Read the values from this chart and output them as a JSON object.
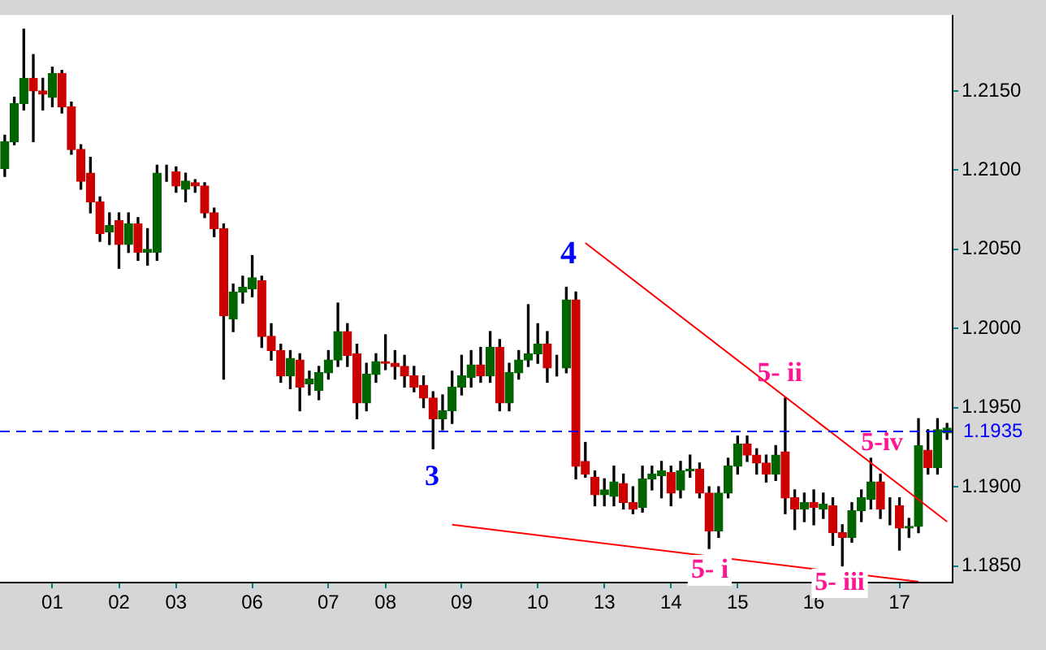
{
  "chart_data": {
    "type": "candlestick",
    "categories": [
      null,
      null,
      null,
      null,
      null,
      "01",
      null,
      null,
      null,
      null,
      null,
      null,
      "02",
      null,
      null,
      null,
      null,
      null,
      "03",
      null,
      null,
      null,
      null,
      null,
      null,
      null,
      "06",
      null,
      null,
      null,
      null,
      null,
      null,
      null,
      "07",
      null,
      null,
      null,
      null,
      null,
      "08",
      null,
      null,
      null,
      null,
      null,
      null,
      null,
      "09",
      null,
      null,
      null,
      null,
      null,
      null,
      null,
      "10",
      null,
      null,
      null,
      null,
      null,
      null,
      "13",
      null,
      null,
      null,
      null,
      null,
      null,
      "14",
      null,
      null,
      null,
      null,
      null,
      null,
      "15",
      null,
      null,
      null,
      null,
      null,
      null,
      null,
      "16",
      null,
      null,
      null,
      null,
      null,
      null,
      null,
      null,
      "17",
      null,
      null,
      null,
      null,
      null
    ],
    "series": [
      {
        "ohlc": [
          [
            1.2101,
            1.2122,
            1.2096,
            1.2118
          ],
          [
            1.2118,
            1.2146,
            1.2116,
            1.2142
          ],
          [
            1.2142,
            1.2189,
            1.2138,
            1.2158
          ],
          [
            1.2158,
            1.2173,
            1.2118,
            1.215
          ],
          [
            1.215,
            1.2158,
            1.2138,
            1.2148
          ],
          [
            1.2146,
            1.2165,
            1.214,
            1.2161
          ],
          [
            1.2161,
            1.2163,
            1.2136,
            1.214
          ],
          [
            1.214,
            1.2143,
            1.211,
            1.2113
          ],
          [
            1.2113,
            1.2116,
            1.2088,
            1.2093
          ],
          [
            1.2098,
            1.2108,
            1.2073,
            1.208
          ],
          [
            1.208,
            1.2083,
            1.2055,
            1.206
          ],
          [
            1.2061,
            1.2073,
            1.2053,
            1.2065
          ],
          [
            1.2068,
            1.2073,
            1.2038,
            1.2053
          ],
          [
            1.2053,
            1.2073,
            1.2048,
            1.2066
          ],
          [
            1.2066,
            1.207,
            1.2043,
            1.2048
          ],
          [
            1.2048,
            1.2063,
            1.204,
            1.205
          ],
          [
            1.2048,
            1.2103,
            1.2043,
            1.2098
          ],
          [
            1.2099,
            1.2103,
            1.2093,
            1.2099
          ],
          [
            1.2099,
            1.2102,
            1.2086,
            1.209
          ],
          [
            1.2088,
            1.2098,
            1.208,
            1.2093
          ],
          [
            1.2092,
            1.2094,
            1.2086,
            1.209
          ],
          [
            1.209,
            1.2092,
            1.207,
            1.2073
          ],
          [
            1.2073,
            1.2076,
            1.2058,
            1.2063
          ],
          [
            1.2063,
            1.2066,
            1.1968,
            1.2008
          ],
          [
            1.2006,
            1.2028,
            1.1998,
            1.2023
          ],
          [
            1.2023,
            1.2033,
            1.2016,
            1.2026
          ],
          [
            1.2025,
            1.2046,
            1.202,
            1.2032
          ],
          [
            1.203,
            1.2033,
            1.1988,
            1.1995
          ],
          [
            1.1995,
            1.2003,
            1.198,
            1.1986
          ],
          [
            1.1986,
            1.199,
            1.1966,
            1.197
          ],
          [
            1.197,
            1.1986,
            1.1962,
            1.1981
          ],
          [
            1.198,
            1.1984,
            1.1948,
            1.1963
          ],
          [
            1.1965,
            1.1973,
            1.1958,
            1.1968
          ],
          [
            1.1961,
            1.1976,
            1.1955,
            1.1972
          ],
          [
            1.1972,
            1.1986,
            1.1968,
            1.198
          ],
          [
            1.198,
            1.2016,
            1.1976,
            1.1998
          ],
          [
            1.1998,
            1.2003,
            1.1976,
            1.1983
          ],
          [
            1.1984,
            1.199,
            1.1943,
            1.1953
          ],
          [
            1.1953,
            1.1978,
            1.1948,
            1.1971
          ],
          [
            1.1971,
            1.1984,
            1.1966,
            1.1979
          ],
          [
            1.1979,
            1.1996,
            1.1974,
            1.1978
          ],
          [
            1.1978,
            1.1986,
            1.1968,
            1.1976
          ],
          [
            1.1976,
            1.1983,
            1.1963,
            1.197
          ],
          [
            1.197,
            1.1976,
            1.196,
            1.1963
          ],
          [
            1.1964,
            1.197,
            1.195,
            1.1956
          ],
          [
            1.1956,
            1.196,
            1.1924,
            1.1943
          ],
          [
            1.1943,
            1.1958,
            1.1936,
            1.1948
          ],
          [
            1.1948,
            1.1973,
            1.194,
            1.1963
          ],
          [
            1.1963,
            1.1983,
            1.1958,
            1.197
          ],
          [
            1.1969,
            1.1986,
            1.1963,
            1.1977
          ],
          [
            1.1977,
            1.1988,
            1.1966,
            1.197
          ],
          [
            1.197,
            1.1998,
            1.1966,
            1.1988
          ],
          [
            1.1988,
            1.1993,
            1.1948,
            1.1953
          ],
          [
            1.1953,
            1.1978,
            1.1948,
            1.1972
          ],
          [
            1.1972,
            1.1986,
            1.1968,
            1.198
          ],
          [
            1.198,
            1.2015,
            1.1976,
            1.1984
          ],
          [
            1.1984,
            1.2003,
            1.1978,
            1.199
          ],
          [
            1.199,
            1.1998,
            1.1966,
            1.1975
          ],
          [
            1.1976,
            1.1983,
            1.197,
            1.1976
          ],
          [
            1.1975,
            1.2026,
            1.1972,
            1.2018
          ],
          [
            1.2018,
            1.2023,
            1.1905,
            1.1913
          ],
          [
            1.1916,
            1.1928,
            1.1906,
            1.1908
          ],
          [
            1.1906,
            1.191,
            1.1888,
            1.1895
          ],
          [
            1.1895,
            1.1905,
            1.1888,
            1.1898
          ],
          [
            1.1894,
            1.1913,
            1.1888,
            1.1903
          ],
          [
            1.1902,
            1.1908,
            1.1886,
            1.189
          ],
          [
            1.189,
            1.19,
            1.1883,
            1.1886
          ],
          [
            1.1887,
            1.1913,
            1.1884,
            1.1905
          ],
          [
            1.1905,
            1.1913,
            1.1898,
            1.1908
          ],
          [
            1.1907,
            1.1916,
            1.1893,
            1.191
          ],
          [
            1.1909,
            1.1913,
            1.1888,
            1.1896
          ],
          [
            1.1898,
            1.1916,
            1.1893,
            1.191
          ],
          [
            1.191,
            1.192,
            1.1906,
            1.1911
          ],
          [
            1.1911,
            1.1915,
            1.1893,
            1.1896
          ],
          [
            1.1896,
            1.19,
            1.1861,
            1.1872
          ],
          [
            1.1872,
            1.19,
            1.1868,
            1.1896
          ],
          [
            1.1896,
            1.1918,
            1.1893,
            1.1913
          ],
          [
            1.1913,
            1.1932,
            1.1908,
            1.1927
          ],
          [
            1.1927,
            1.1932,
            1.1916,
            1.192
          ],
          [
            1.192,
            1.1924,
            1.1908,
            1.1915
          ],
          [
            1.1915,
            1.192,
            1.1903,
            1.1908
          ],
          [
            1.1908,
            1.1926,
            1.1904,
            1.192
          ],
          [
            1.1922,
            1.1956,
            1.1883,
            1.1893
          ],
          [
            1.1893,
            1.1898,
            1.1873,
            1.1886
          ],
          [
            1.1886,
            1.1896,
            1.1878,
            1.189
          ],
          [
            1.189,
            1.1898,
            1.1876,
            1.1887
          ],
          [
            1.1886,
            1.1896,
            1.188,
            1.1889
          ],
          [
            1.1888,
            1.1893,
            1.1863,
            1.1871
          ],
          [
            1.1871,
            1.1876,
            1.185,
            1.1868
          ],
          [
            1.1868,
            1.189,
            1.1865,
            1.1885
          ],
          [
            1.1885,
            1.1898,
            1.1878,
            1.1893
          ],
          [
            1.1892,
            1.1918,
            1.1886,
            1.1903
          ],
          [
            1.1903,
            1.1908,
            1.188,
            1.1886
          ],
          [
            1.1886,
            1.1893,
            1.1876,
            1.1886
          ],
          [
            1.1888,
            1.1893,
            1.186,
            1.1874
          ],
          [
            1.1874,
            1.188,
            1.1868,
            1.1875
          ],
          [
            1.1875,
            1.1943,
            1.1871,
            1.1926
          ],
          [
            1.1923,
            1.1936,
            1.1908,
            1.1912
          ],
          [
            1.1912,
            1.1943,
            1.1908,
            1.1936
          ],
          [
            1.1934,
            1.194,
            1.193,
            1.1937
          ]
        ],
        "colors": [
          "#006400",
          "#006400",
          "#006400",
          "#cc0000",
          "#cc0000",
          "#006400",
          "#cc0000",
          "#cc0000",
          "#cc0000",
          "#cc0000",
          "#cc0000",
          "#006400",
          "#cc0000",
          "#006400",
          "#cc0000",
          "#006400",
          "#006400",
          "#006400",
          "#cc0000",
          "#006400",
          "#cc0000",
          "#cc0000",
          "#cc0000",
          "#cc0000",
          "#006400",
          "#006400",
          "#006400",
          "#cc0000",
          "#cc0000",
          "#cc0000",
          "#006400",
          "#cc0000",
          "#006400",
          "#006400",
          "#006400",
          "#006400",
          "#cc0000",
          "#cc0000",
          "#006400",
          "#006400",
          "#cc0000",
          "#cc0000",
          "#cc0000",
          "#cc0000",
          "#cc0000",
          "#cc0000",
          "#006400",
          "#006400",
          "#006400",
          "#006400",
          "#cc0000",
          "#006400",
          "#cc0000",
          "#006400",
          "#006400",
          "#006400",
          "#006400",
          "#cc0000",
          "#006400",
          "#006400",
          "#cc0000",
          "#cc0000",
          "#cc0000",
          "#006400",
          "#006400",
          "#cc0000",
          "#cc0000",
          "#006400",
          "#006400",
          "#006400",
          "#cc0000",
          "#006400",
          "#006400",
          "#cc0000",
          "#cc0000",
          "#006400",
          "#006400",
          "#006400",
          "#cc0000",
          "#cc0000",
          "#cc0000",
          "#006400",
          "#cc0000",
          "#cc0000",
          "#006400",
          "#cc0000",
          "#006400",
          "#cc0000",
          "#cc0000",
          "#006400",
          "#006400",
          "#006400",
          "#cc0000",
          "#006400",
          "#cc0000",
          "#006400",
          "#006400",
          "#cc0000",
          "#006400",
          "#006400"
        ]
      },
      {
        "type": "line",
        "color": "#ff0000",
        "values": [
          null,
          null,
          null,
          null,
          null,
          null,
          null,
          null,
          null,
          null,
          null,
          null,
          null,
          null,
          null,
          null,
          null,
          null,
          null,
          null,
          null,
          null,
          null,
          null,
          null,
          null,
          null,
          null,
          null,
          null,
          null,
          null,
          null,
          null,
          null,
          null,
          null,
          null,
          null,
          null,
          null,
          null,
          null,
          null,
          null,
          null,
          null,
          null,
          null,
          null,
          null,
          null,
          null,
          null,
          null,
          null,
          null,
          null,
          null,
          null,
          null,
          1.2054,
          null,
          null,
          null,
          null,
          null,
          null,
          null,
          null,
          null,
          null,
          null,
          null,
          null,
          null,
          null,
          null,
          null,
          null,
          null,
          null,
          null,
          null,
          null,
          null,
          null,
          null,
          null,
          null,
          null,
          null,
          null,
          null,
          null,
          null,
          null,
          null,
          null,
          1.1878
        ]
      },
      {
        "type": "line",
        "color": "#ff0000",
        "values": [
          null,
          null,
          null,
          null,
          null,
          null,
          null,
          null,
          null,
          null,
          null,
          null,
          null,
          null,
          null,
          null,
          null,
          null,
          null,
          null,
          null,
          null,
          null,
          null,
          null,
          null,
          null,
          null,
          null,
          null,
          null,
          null,
          null,
          null,
          null,
          null,
          null,
          null,
          null,
          null,
          null,
          null,
          null,
          null,
          null,
          null,
          null,
          1.1876,
          null,
          null,
          null,
          null,
          null,
          null,
          null,
          null,
          null,
          null,
          null,
          null,
          null,
          null,
          null,
          null,
          null,
          null,
          null,
          null,
          null,
          null,
          null,
          null,
          null,
          null,
          null,
          null,
          null,
          null,
          null,
          null,
          null,
          null,
          null,
          null,
          null,
          null,
          null,
          null,
          null,
          null,
          null,
          null,
          null,
          null,
          null,
          null,
          1.184,
          null,
          null,
          null
        ]
      }
    ],
    "ylim": [
      1.184,
      1.2198
    ],
    "yticks": [
      {
        "value": 1.185,
        "label": "1.1850"
      },
      {
        "value": 1.19,
        "label": "1.1900"
      },
      {
        "value": 1.195,
        "label": "1.1950"
      },
      {
        "value": 1.2,
        "label": "1.2000"
      },
      {
        "value": 1.205,
        "label": "1.2050"
      },
      {
        "value": 1.21,
        "label": "1.2100"
      },
      {
        "value": 1.215,
        "label": "1.2150"
      }
    ],
    "ref_lines": [
      {
        "axis": "y",
        "value": 1.1935,
        "label": "1.1935",
        "color": "#0000ff",
        "line_style": "dashed"
      }
    ],
    "annotations": [
      "4",
      "3",
      "5- ii",
      "5-iv",
      "5- i",
      "5- iii"
    ],
    "grid": false,
    "legend": false,
    "marker": "none"
  }
}
